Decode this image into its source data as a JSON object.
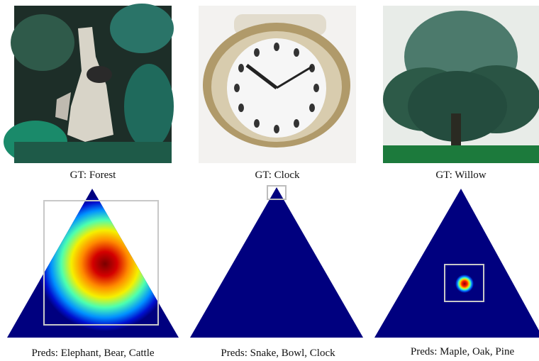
{
  "panels": [
    {
      "gt": "GT: Forest",
      "preds": "Preds: Elephant, Bear, Cattle"
    },
    {
      "gt": "GT: Clock",
      "preds": "Preds: Snake, Bowl, Clock"
    },
    {
      "gt": "GT: Willow",
      "preds": "Preds: Maple, Oak, Pine"
    }
  ]
}
